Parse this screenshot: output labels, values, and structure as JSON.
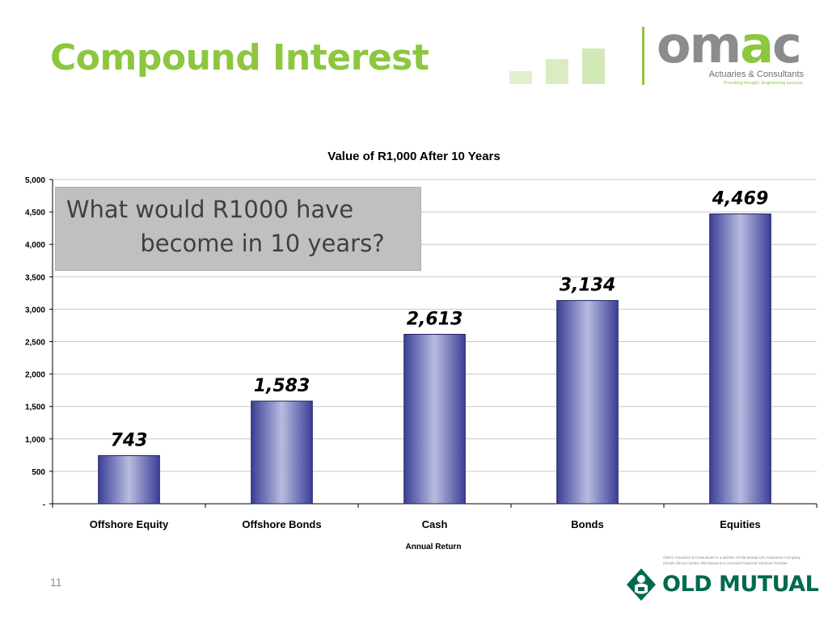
{
  "slide": {
    "title": "Compound Interest",
    "number": "11",
    "title_color": "#8dc63f"
  },
  "logo": {
    "brand_gray": "om",
    "brand_green": "a",
    "brand_gray_end": "c",
    "tagline": "Actuaries & Consultants",
    "slogan": "Provoking thought. Engineering success."
  },
  "callout": {
    "line1": "What would R1000 have",
    "line2": "become in 10 years?"
  },
  "footer": {
    "disclaimer": "OMAC Actuaries & Consultants is a division of Old Mutual Life Assurance Company (South Africa) Limited. Old Mutual is a Licensed Financial Services Provider",
    "old_mutual": "OLD MUTUAL",
    "old_mutual_color": "#006a4d"
  },
  "chart_data": {
    "type": "bar",
    "title": "Value of R1,000 After 10 Years",
    "xlabel": "Annual Return",
    "ylabel": "",
    "categories": [
      "Offshore Equity",
      "Offshore Bonds",
      "Cash",
      "Bonds",
      "Equities"
    ],
    "values": [
      743,
      1583,
      2613,
      3134,
      4469
    ],
    "data_labels": [
      "743",
      "1,583",
      "2,613",
      "3,134",
      "4,469"
    ],
    "ylim": [
      0,
      5000
    ],
    "yticks": [
      0,
      500,
      1000,
      1500,
      2000,
      2500,
      3000,
      3500,
      4000,
      4500,
      5000
    ],
    "ytick_labels": [
      "-",
      "500",
      "1,000",
      "1,500",
      "2,000",
      "2,500",
      "3,000",
      "3,500",
      "4,000",
      "4,500",
      "5,000"
    ],
    "grid": true,
    "bar_color_edge": "#3b3f96",
    "bar_color_center": "#b8bce0"
  }
}
